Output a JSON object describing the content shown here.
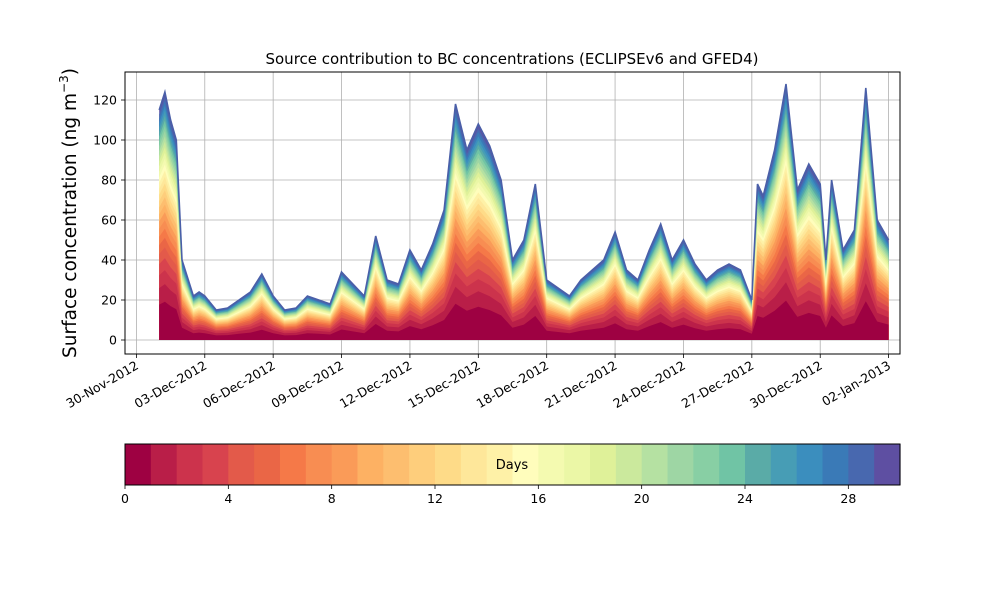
{
  "chart_data": {
    "type": "area",
    "stacked": true,
    "title": "Source contribution to BC concentrations (ECLIPSEv6 and GFED4)",
    "ylabel": "Surface concentration (ng m⁻³)",
    "ylabel_main": "Surface concentration (ng m",
    "ylabel_unit_sup": "−3",
    "ylabel_close": ")",
    "xlabel": "",
    "x_axis_type": "date",
    "xlim": [
      "2012-11-29T12:00",
      "2013-01-02T12:00"
    ],
    "ylim": [
      -7,
      134
    ],
    "grid": true,
    "x_ticks": [
      "30-Nov-2012",
      "03-Dec-2012",
      "06-Dec-2012",
      "09-Dec-2012",
      "12-Dec-2012",
      "15-Dec-2012",
      "18-Dec-2012",
      "21-Dec-2012",
      "24-Dec-2012",
      "27-Dec-2012",
      "30-Dec-2012",
      "02-Jan-2013"
    ],
    "y_ticks": [
      0,
      20,
      40,
      60,
      80,
      100,
      120
    ],
    "x": [
      "2012-12-01T00:00",
      "2012-12-01T06:00",
      "2012-12-01T12:00",
      "2012-12-01T18:00",
      "2012-12-02T00:00",
      "2012-12-02T12:00",
      "2012-12-02T18:00",
      "2012-12-03T00:00",
      "2012-12-03T12:00",
      "2012-12-04T00:00",
      "2012-12-04T12:00",
      "2012-12-05T00:00",
      "2012-12-05T12:00",
      "2012-12-06T00:00",
      "2012-12-06T12:00",
      "2012-12-07T00:00",
      "2012-12-07T12:00",
      "2012-12-08T00:00",
      "2012-12-08T12:00",
      "2012-12-09T00:00",
      "2012-12-09T12:00",
      "2012-12-10T00:00",
      "2012-12-10T12:00",
      "2012-12-11T00:00",
      "2012-12-11T12:00",
      "2012-12-12T00:00",
      "2012-12-12T12:00",
      "2012-12-13T00:00",
      "2012-12-13T12:00",
      "2012-12-14T00:00",
      "2012-12-14T12:00",
      "2012-12-15T00:00",
      "2012-12-15T12:00",
      "2012-12-16T00:00",
      "2012-12-16T12:00",
      "2012-12-17T00:00",
      "2012-12-17T12:00",
      "2012-12-18T00:00",
      "2012-12-18T12:00",
      "2012-12-19T00:00",
      "2012-12-19T12:00",
      "2012-12-20T00:00",
      "2012-12-20T12:00",
      "2012-12-21T00:00",
      "2012-12-21T12:00",
      "2012-12-22T00:00",
      "2012-12-22T12:00",
      "2012-12-23T00:00",
      "2012-12-23T12:00",
      "2012-12-24T00:00",
      "2012-12-24T12:00",
      "2012-12-25T00:00",
      "2012-12-25T12:00",
      "2012-12-26T00:00",
      "2012-12-26T12:00",
      "2012-12-27T00:00",
      "2012-12-27T06:00",
      "2012-12-27T12:00",
      "2012-12-28T00:00",
      "2012-12-28T12:00",
      "2012-12-29T00:00",
      "2012-12-29T12:00",
      "2012-12-30T00:00",
      "2012-12-30T06:00",
      "2012-12-30T12:00",
      "2012-12-31T00:00",
      "2012-12-31T12:00",
      "2013-01-01T00:00",
      "2013-01-01T12:00",
      "2013-01-02T00:00"
    ],
    "total": [
      115,
      124,
      110,
      100,
      40,
      22,
      24,
      22,
      15,
      16,
      20,
      24,
      33,
      22,
      15,
      16,
      22,
      20,
      18,
      34,
      28,
      22,
      52,
      30,
      28,
      45,
      35,
      48,
      65,
      118,
      95,
      108,
      97,
      80,
      40,
      50,
      78,
      30,
      26,
      22,
      30,
      35,
      40,
      54,
      35,
      30,
      45,
      58,
      40,
      50,
      38,
      30,
      35,
      38,
      35,
      20,
      78,
      72,
      95,
      128,
      75,
      88,
      78,
      40,
      80,
      45,
      55,
      126,
      60,
      50
    ],
    "fresh_fraction_note": "",
    "colorbar": {
      "label": "Days",
      "min": 0,
      "max": 30,
      "ticks": [
        0,
        4,
        8,
        12,
        16,
        20,
        24,
        28
      ],
      "colors": [
        "#9e0142",
        "#b91e48",
        "#cc334c",
        "#d8434e",
        "#e35a4a",
        "#ea6646",
        "#f57948",
        "#f88d52",
        "#fa9b58",
        "#fdb163",
        "#fdbe6f",
        "#fece7c",
        "#fedb88",
        "#fee79a",
        "#fef1a7",
        "#fffdbc",
        "#f4fab0",
        "#ebf7a6",
        "#dff199",
        "#cbe99d",
        "#b5e1a2",
        "#9ed6a4",
        "#88cfa4",
        "#70c4a5",
        "#5aaba7",
        "#479db5",
        "#3b8ebe",
        "#3a7ab7",
        "#4868af",
        "#5e4fa2"
      ]
    }
  }
}
